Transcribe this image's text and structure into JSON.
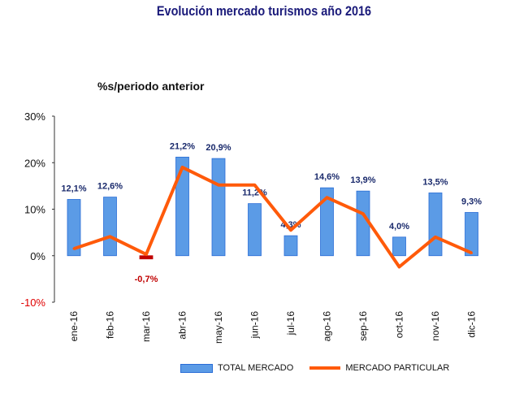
{
  "chart_data": {
    "type": "bar+line",
    "title": "Evolución mercado turismos año 2016",
    "subtitle": "%s/periodo anterior",
    "categories": [
      "ene-16",
      "feb-16",
      "mar-16",
      "abr-16",
      "may-16",
      "jun-16",
      "jul-16",
      "ago-16",
      "sep-16",
      "oct-16",
      "nov-16",
      "dic-16"
    ],
    "series": [
      {
        "name": "TOTAL MERCADO",
        "type": "bar",
        "values": [
          12.1,
          12.6,
          -0.7,
          21.2,
          20.9,
          11.2,
          4.3,
          14.6,
          13.9,
          4.0,
          13.5,
          9.3
        ],
        "labels": [
          "12,1%",
          "12,6%",
          "-0,7%",
          "21,2%",
          "20,9%",
          "11,2%",
          "4,3%",
          "14,6%",
          "13,9%",
          "4,0%",
          "13,5%",
          "9,3%"
        ]
      },
      {
        "name": "MERCADO PARTICULAR",
        "type": "line",
        "values": [
          1.5,
          4.1,
          0.3,
          19.0,
          15.2,
          15.2,
          5.5,
          12.5,
          9.0,
          -2.4,
          4.0,
          0.6
        ]
      }
    ],
    "yticks": [
      "30%",
      "20%",
      "10%",
      "0%",
      "-10%"
    ],
    "ytick_values": [
      30,
      20,
      10,
      0,
      -10
    ],
    "ylim": [
      -10,
      30
    ],
    "legend_position": "bottom",
    "colors": {
      "bar": "#5b9be6",
      "bar_negative": "#c00000",
      "line": "#ff5a0a",
      "label": "#1a2a6c",
      "negative_label": "#c00000",
      "negative_tick": "#e00000"
    }
  }
}
